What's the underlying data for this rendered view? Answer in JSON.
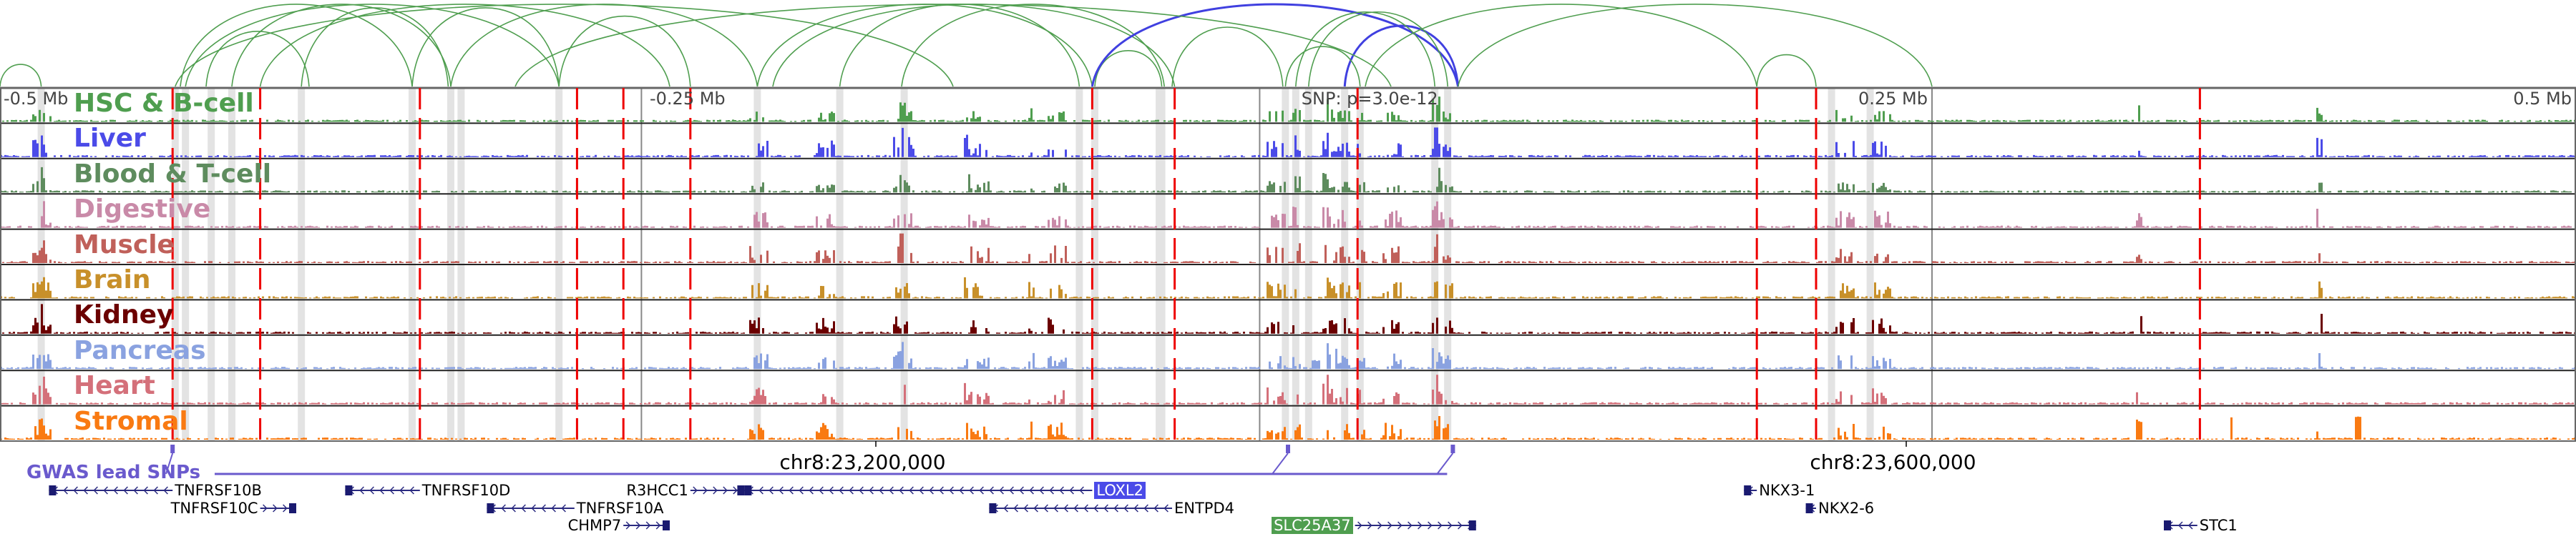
{
  "view": {
    "chrom": "chr8",
    "center": 23360000,
    "half_width_kb": 500
  },
  "axis": {
    "labels": [
      {
        "text": "-0.5 Mb",
        "kb": -500,
        "align": "left"
      },
      {
        "text": "-0.25 Mb",
        "kb": -250,
        "align": "left"
      },
      {
        "text": "SNP: p=3.0e-12",
        "kb": 3,
        "align": "left"
      },
      {
        "text": "0.25 Mb",
        "kb": 250,
        "align": "right"
      },
      {
        "text": "0.5 Mb",
        "kb": 500,
        "align": "right"
      }
    ],
    "coords": [
      {
        "text": "chr8:23,200,000",
        "kb": -160
      },
      {
        "text": "chr8:23,600,000",
        "kb": 240
      }
    ]
  },
  "tracks": [
    {
      "label": "HSC & B-cell",
      "color": "#4f9e4f"
    },
    {
      "label": "Liver",
      "color": "#4b4be8"
    },
    {
      "label": "Blood & T-cell",
      "color": "#5e8c5e"
    },
    {
      "label": "Digestive",
      "color": "#c98aa8"
    },
    {
      "label": "Muscle",
      "color": "#c0605a"
    },
    {
      "label": "Brain",
      "color": "#c8902a"
    },
    {
      "label": "Kidney",
      "color": "#6b0000"
    },
    {
      "label": "Pancreas",
      "color": "#8aa2e0"
    },
    {
      "label": "Heart",
      "color": "#d4707a"
    },
    {
      "label": "Stromal",
      "color": "#f97a12"
    }
  ],
  "red_lines_kb": [
    -433,
    -399,
    -337,
    -276,
    -258,
    -232,
    -76,
    -44,
    27,
    182,
    205,
    354
  ],
  "gray_bands_kb": [
    -484,
    -432,
    -428,
    -418,
    -410,
    -383,
    -340,
    -325,
    -321,
    -283,
    -206,
    -174,
    -149,
    -81,
    -75,
    -50,
    -49,
    -1,
    3,
    8,
    22,
    28,
    57,
    62,
    211,
    226
  ],
  "gray_lines_kb": [
    -251,
    -11,
    250
  ],
  "links": {
    "color": "#4f9e4f",
    "highlight_color": "#4040e0",
    "pairs": [
      [
        -500,
        -484,
        0
      ],
      [
        -432,
        -130,
        0
      ],
      [
        -430,
        -340,
        0
      ],
      [
        -428,
        -283,
        0
      ],
      [
        -420,
        -380,
        0
      ],
      [
        -410,
        -325,
        0
      ],
      [
        -399,
        -240,
        0
      ],
      [
        -383,
        -326,
        0
      ],
      [
        -340,
        -283,
        0
      ],
      [
        -325,
        -206,
        0
      ],
      [
        -283,
        -232,
        0
      ],
      [
        -206,
        -76,
        0
      ],
      [
        -200,
        -44,
        0
      ],
      [
        -174,
        -81,
        0
      ],
      [
        -150,
        -48,
        0
      ],
      [
        -75,
        -49,
        0
      ],
      [
        -76,
        66,
        1
      ],
      [
        22,
        66,
        1
      ],
      [
        -1,
        28,
        0
      ],
      [
        3,
        57,
        0
      ],
      [
        8,
        62,
        0
      ],
      [
        -45,
        -2,
        0
      ],
      [
        30,
        182,
        0
      ],
      [
        66,
        250,
        0
      ],
      [
        182,
        205,
        0
      ],
      [
        -300,
        40,
        0
      ]
    ]
  },
  "gwas": {
    "label": "GWAS lead SNPs",
    "color": "#6a5acd",
    "snps_kb": [
      -433,
      0,
      64
    ]
  },
  "genes": [
    {
      "name": "TNFRSF10B",
      "start": -481,
      "end": -433,
      "strand": "-",
      "row": 0,
      "label_side": "right"
    },
    {
      "name": "TNFRSF10C",
      "start": -399,
      "end": -385,
      "strand": "+",
      "row": 1,
      "label_side": "left"
    },
    {
      "name": "TNFRSF10D",
      "start": -366,
      "end": -337,
      "strand": "-",
      "row": 0,
      "label_side": "right"
    },
    {
      "name": "TNFRSF10A",
      "start": -311,
      "end": -277,
      "strand": "-",
      "row": 1,
      "label_side": "right"
    },
    {
      "name": "CHMP7",
      "start": -258,
      "end": -240,
      "strand": "+",
      "row": 2,
      "label_side": "left"
    },
    {
      "name": "R3HCC1",
      "start": -232,
      "end": -211,
      "strand": "+",
      "row": 0,
      "label_side": "left"
    },
    {
      "name": "LOXL2",
      "start": -211,
      "end": -76,
      "strand": "-",
      "row": 0,
      "label_side": "right",
      "highlight": "#4b4be8"
    },
    {
      "name": "ENTPD4",
      "start": -116,
      "end": -45,
      "strand": "-",
      "row": 1,
      "label_side": "right"
    },
    {
      "name": "SLC25A37",
      "start": 26,
      "end": 73,
      "strand": "+",
      "row": 2,
      "label_side": "left",
      "highlight": "#4f9e4f"
    },
    {
      "name": "NKX3-1",
      "start": 177,
      "end": 182,
      "strand": "-",
      "row": 0,
      "label_side": "right"
    },
    {
      "name": "NKX2-6",
      "start": 201,
      "end": 205,
      "strand": "-",
      "row": 1,
      "label_side": "right"
    },
    {
      "name": "STC1",
      "start": 340,
      "end": 353,
      "strand": "-",
      "row": 2,
      "label_side": "right"
    }
  ]
}
